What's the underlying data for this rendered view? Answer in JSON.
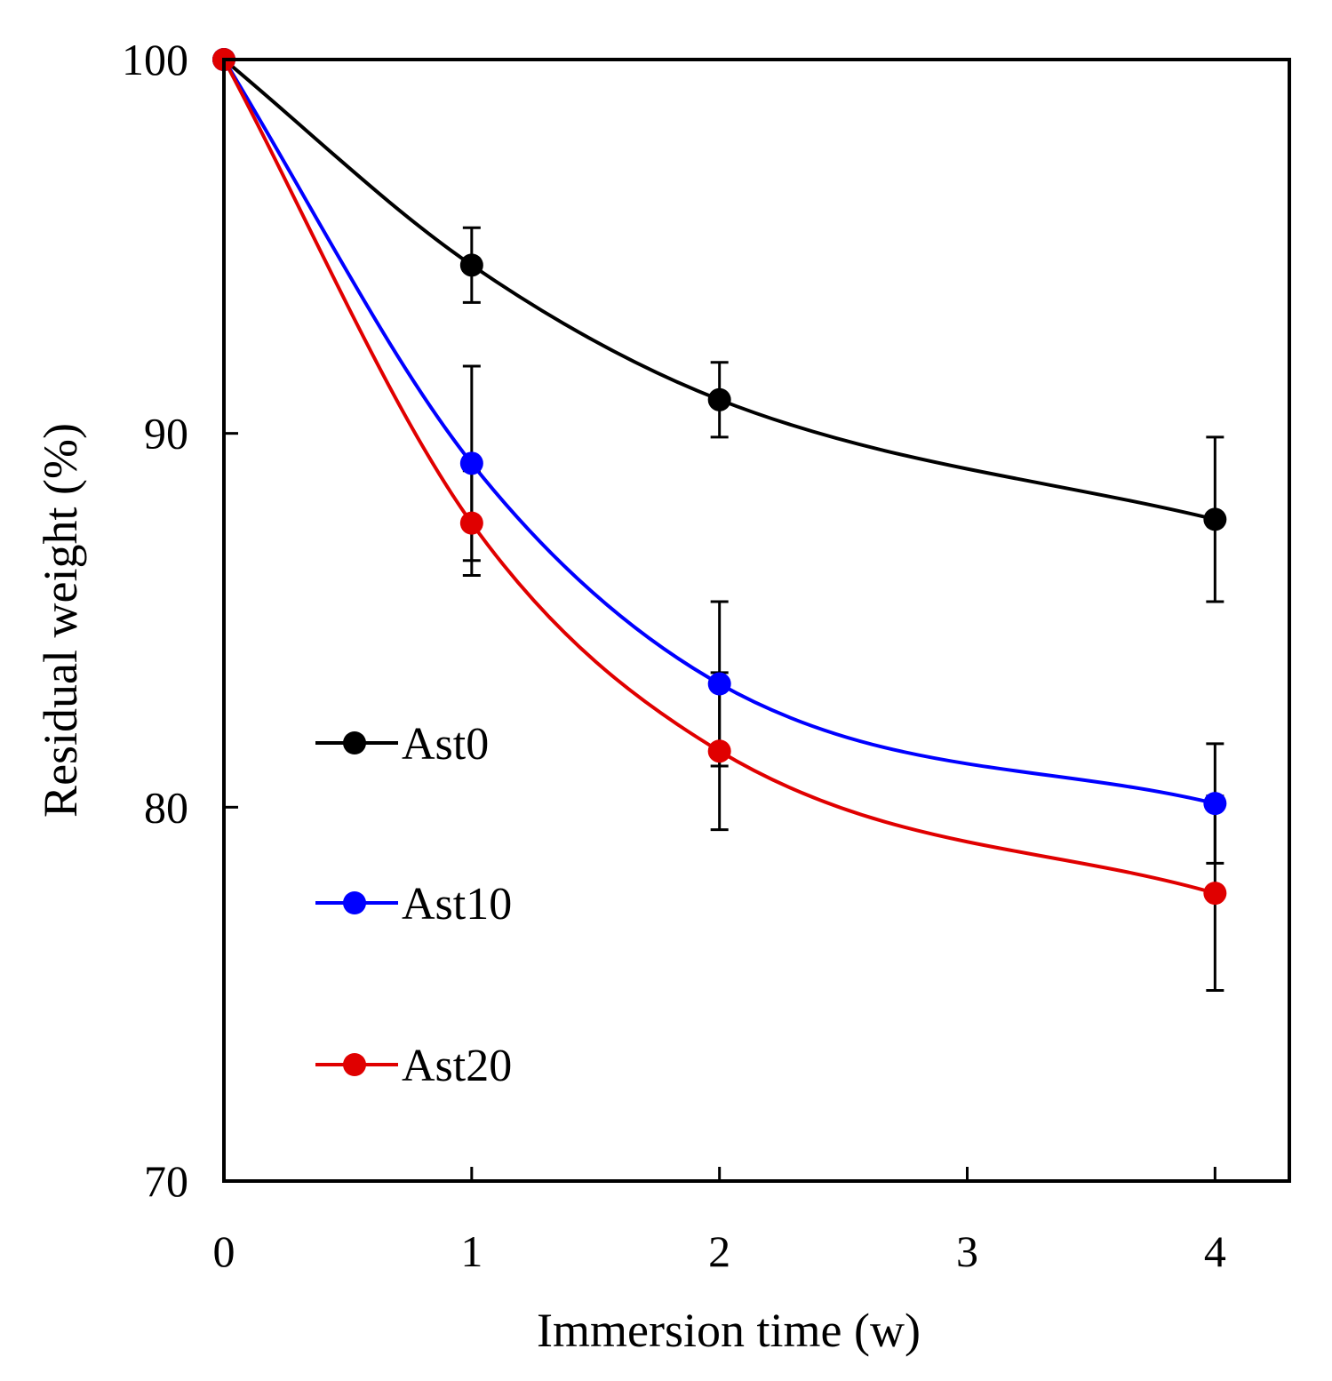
{
  "chart_data": {
    "type": "line",
    "title": "",
    "xlabel": "Immersion time (w)",
    "ylabel": "Residual weight (%)",
    "xlim": [
      0,
      4.3
    ],
    "ylim": [
      70,
      100
    ],
    "x_ticks": [
      0,
      1,
      2,
      3,
      4
    ],
    "x_tick_labels": [
      "0",
      "1",
      "2",
      "3",
      "4"
    ],
    "y_ticks": [
      70,
      80,
      90,
      100
    ],
    "y_tick_labels": [
      "70",
      "80",
      "90",
      "100"
    ],
    "grid": false,
    "legend_position": "left-middle",
    "smooth_lines": true,
    "series": [
      {
        "name": "Ast0",
        "color": "#000000",
        "x": [
          0,
          1,
          2,
          4
        ],
        "y": [
          100,
          94.5,
          90.9,
          87.7
        ],
        "error": [
          0,
          1.0,
          1.0,
          2.2
        ]
      },
      {
        "name": "Ast10",
        "color": "#0000FF",
        "x": [
          0,
          1,
          2,
          4
        ],
        "y": [
          100,
          89.2,
          83.3,
          80.1
        ],
        "error": [
          0,
          2.6,
          2.2,
          1.6
        ]
      },
      {
        "name": "Ast20",
        "color": "#E00000",
        "x": [
          0,
          1,
          2,
          4
        ],
        "y": [
          100,
          87.6,
          81.5,
          77.7
        ],
        "error": [
          0,
          1.4,
          2.1,
          2.6
        ]
      }
    ]
  }
}
